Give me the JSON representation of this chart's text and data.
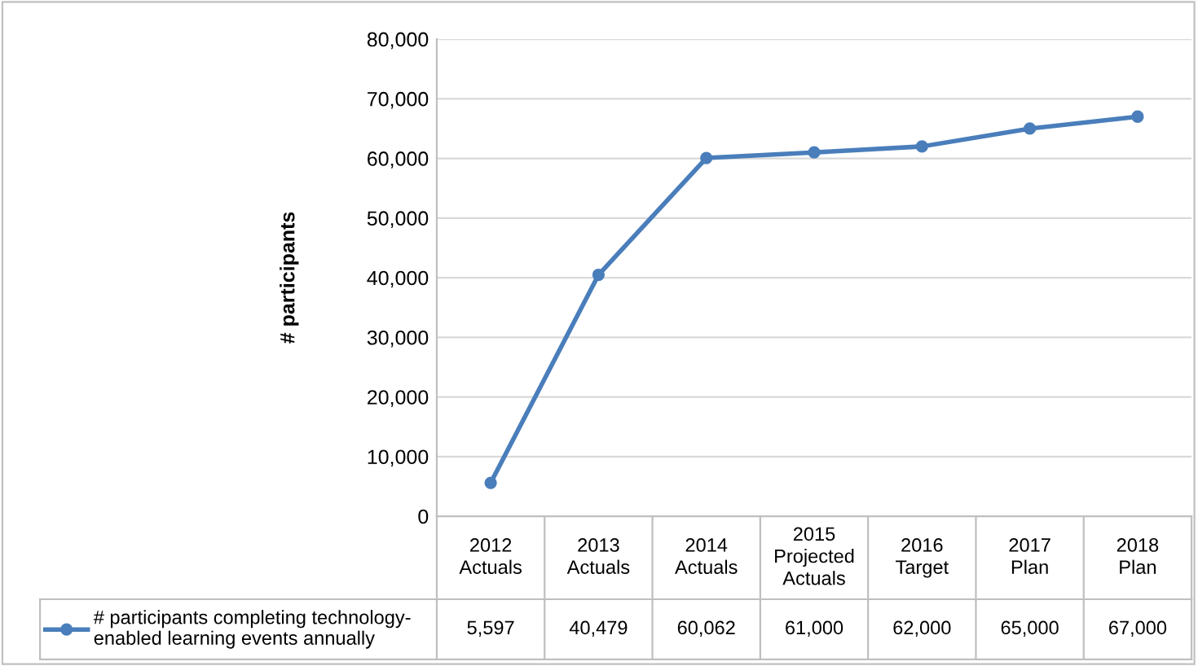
{
  "chart_data": {
    "type": "line",
    "ylabel": "# participants",
    "categories": [
      "2012\nActuals",
      "2013\nActuals",
      "2014\nActuals",
      "2015\nProjected\nActuals",
      "2016\nTarget",
      "2017\nPlan",
      "2018\nPlan"
    ],
    "series": [
      {
        "name": "# participants completing technology-\nenabled learning events annually",
        "color": "#4a7ebb",
        "values": [
          5597,
          40479,
          60062,
          61000,
          62000,
          65000,
          67000
        ]
      }
    ],
    "value_labels": [
      "5,597",
      "40,479",
      "60,062",
      "61,000",
      "62,000",
      "65,000",
      "67,000"
    ],
    "ylim": [
      0,
      80000
    ],
    "yticks": [
      0,
      {
        "value": 10000,
        "label": "10,000"
      },
      {
        "value": 20000,
        "label": "20,000"
      },
      {
        "value": 30000,
        "label": "30,000"
      },
      {
        "value": 40000,
        "label": "40,000"
      },
      {
        "value": 50000,
        "label": "50,000"
      },
      {
        "value": 60000,
        "label": "60,000"
      },
      {
        "value": 70000,
        "label": "70,000"
      },
      {
        "value": 80000,
        "label": "80,000"
      }
    ],
    "grid": "y",
    "marker": "circle",
    "line_style": "solid",
    "legend": "bottom"
  }
}
